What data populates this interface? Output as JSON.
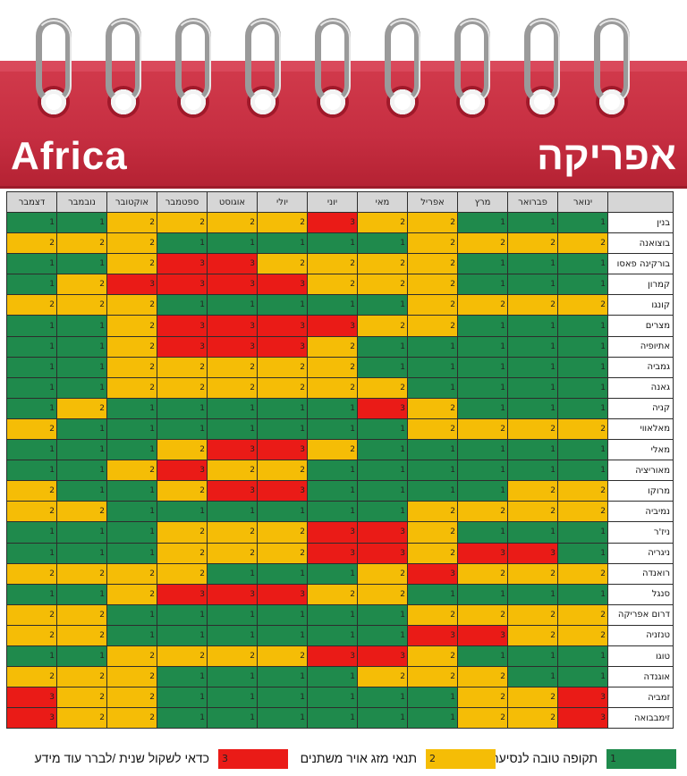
{
  "title": {
    "english": "Africa",
    "hebrew": "אפריקה"
  },
  "colors": {
    "good": "#1f8a4c",
    "varying": "#f5bd06",
    "consider": "#ea1b17"
  },
  "months": [
    "ינואר",
    "פברואר",
    "מרץ",
    "אפריל",
    "מאי",
    "יוני",
    "יולי",
    "אוגוסט",
    "ספטמבר",
    "אוקטובר",
    "נובמבר",
    "דצמבר"
  ],
  "rows": [
    {
      "country": "בנין",
      "values": [
        1,
        1,
        1,
        2,
        2,
        3,
        2,
        2,
        2,
        2,
        1,
        1
      ]
    },
    {
      "country": "בוצואנה",
      "values": [
        2,
        2,
        2,
        2,
        1,
        1,
        1,
        1,
        1,
        2,
        2,
        2
      ]
    },
    {
      "country": "בורקינה פאסו",
      "values": [
        1,
        1,
        1,
        2,
        2,
        2,
        2,
        3,
        3,
        2,
        1,
        1
      ]
    },
    {
      "country": "קמרון",
      "values": [
        1,
        1,
        1,
        2,
        2,
        2,
        3,
        3,
        3,
        3,
        2,
        1
      ]
    },
    {
      "country": "קונגו",
      "values": [
        2,
        2,
        2,
        2,
        1,
        1,
        1,
        1,
        1,
        2,
        2,
        2
      ]
    },
    {
      "country": "מצרים",
      "values": [
        1,
        1,
        1,
        2,
        2,
        3,
        3,
        3,
        3,
        2,
        1,
        1
      ]
    },
    {
      "country": "אתיופיה",
      "values": [
        1,
        1,
        1,
        1,
        1,
        2,
        3,
        3,
        3,
        2,
        1,
        1
      ]
    },
    {
      "country": "גמביה",
      "values": [
        1,
        1,
        1,
        1,
        1,
        2,
        2,
        2,
        2,
        2,
        1,
        1
      ]
    },
    {
      "country": "גאנה",
      "values": [
        1,
        1,
        1,
        1,
        2,
        2,
        2,
        2,
        2,
        2,
        1,
        1
      ]
    },
    {
      "country": "קניה",
      "values": [
        1,
        1,
        1,
        2,
        3,
        1,
        1,
        1,
        1,
        1,
        2,
        1
      ]
    },
    {
      "country": "מאלאווי",
      "values": [
        2,
        2,
        2,
        2,
        1,
        1,
        1,
        1,
        1,
        1,
        1,
        2
      ]
    },
    {
      "country": "מאלי",
      "values": [
        1,
        1,
        1,
        1,
        1,
        2,
        3,
        3,
        2,
        1,
        1,
        1
      ]
    },
    {
      "country": "מאוריציה",
      "values": [
        1,
        1,
        1,
        1,
        1,
        1,
        2,
        2,
        3,
        2,
        1,
        1
      ]
    },
    {
      "country": "מרוקו",
      "values": [
        2,
        2,
        1,
        1,
        1,
        1,
        3,
        3,
        2,
        1,
        1,
        2
      ]
    },
    {
      "country": "נמיביה",
      "values": [
        2,
        2,
        2,
        2,
        1,
        1,
        1,
        1,
        1,
        1,
        2,
        2
      ]
    },
    {
      "country": "ניז'ר",
      "values": [
        1,
        1,
        1,
        2,
        3,
        3,
        2,
        2,
        2,
        1,
        1,
        1
      ]
    },
    {
      "country": "ניגריה",
      "values": [
        1,
        3,
        3,
        2,
        3,
        3,
        2,
        2,
        2,
        1,
        1,
        1
      ]
    },
    {
      "country": "רואנדה",
      "values": [
        2,
        2,
        2,
        3,
        2,
        1,
        1,
        1,
        2,
        2,
        2,
        2
      ]
    },
    {
      "country": "סנגל",
      "values": [
        1,
        1,
        1,
        1,
        2,
        2,
        3,
        3,
        3,
        2,
        1,
        1
      ]
    },
    {
      "country": "דרום אפריקה",
      "values": [
        2,
        2,
        2,
        2,
        1,
        1,
        1,
        1,
        1,
        1,
        2,
        2
      ]
    },
    {
      "country": "טנזניה",
      "values": [
        2,
        2,
        3,
        3,
        1,
        1,
        1,
        1,
        1,
        1,
        2,
        2
      ]
    },
    {
      "country": "טוגו",
      "values": [
        1,
        1,
        1,
        2,
        3,
        3,
        2,
        2,
        2,
        2,
        1,
        1
      ]
    },
    {
      "country": "אוגנדה",
      "values": [
        1,
        1,
        2,
        2,
        2,
        1,
        1,
        1,
        1,
        2,
        2,
        2
      ]
    },
    {
      "country": "זמביה",
      "values": [
        3,
        2,
        2,
        1,
        1,
        1,
        1,
        1,
        1,
        2,
        2,
        3
      ]
    },
    {
      "country": "זימבבואה",
      "values": [
        3,
        2,
        2,
        1,
        1,
        1,
        1,
        1,
        1,
        2,
        2,
        3
      ]
    }
  ],
  "legend": [
    {
      "value": "1",
      "label": "תקופה טובה לנסיעה",
      "color": "#1f8a4c"
    },
    {
      "value": "2",
      "label": "תנאי מזג אויר משתנים",
      "color": "#f5bd06"
    },
    {
      "value": "3",
      "label": "כדאי לשקול שנית /לברר עוד מידע",
      "color": "#ea1b17"
    }
  ]
}
